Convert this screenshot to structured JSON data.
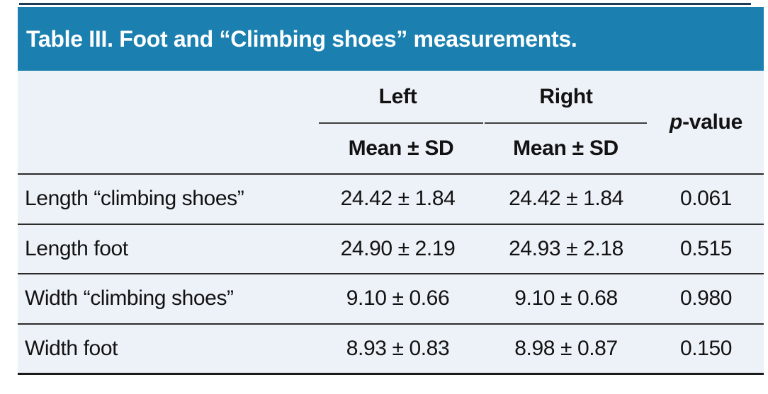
{
  "table": {
    "title": "Table III. Foot and “Climbing shoes” measurements.",
    "header": {
      "left_group_label": "Left",
      "right_group_label": "Right",
      "left_sub_label": "Mean ± SD",
      "right_sub_label": "Mean ± SD",
      "pvalue_italic": "p",
      "pvalue_rest": "-value"
    },
    "rows": [
      {
        "label": "Length “climbing shoes”",
        "left": "24.42 ± 1.84",
        "right": "24.42 ± 1.84",
        "p": "0.061"
      },
      {
        "label": "Length foot",
        "left": "24.90 ± 2.19",
        "right": "24.93 ± 2.18",
        "p": "0.515"
      },
      {
        "label": "Width “climbing shoes”",
        "left": "9.10 ± 0.66",
        "right": "9.10 ± 0.68",
        "p": "0.980"
      },
      {
        "label": "Width foot",
        "left": "8.93 ± 0.83",
        "right": "8.98 ± 0.87",
        "p": "0.150"
      }
    ],
    "colors": {
      "header_bg": "#1b80af",
      "body_bg": "#edf1f8",
      "top_rule": "#1e3c55",
      "row_rule": "#2b2b2b",
      "title_text": "#ffffff",
      "body_text": "#121212"
    }
  }
}
